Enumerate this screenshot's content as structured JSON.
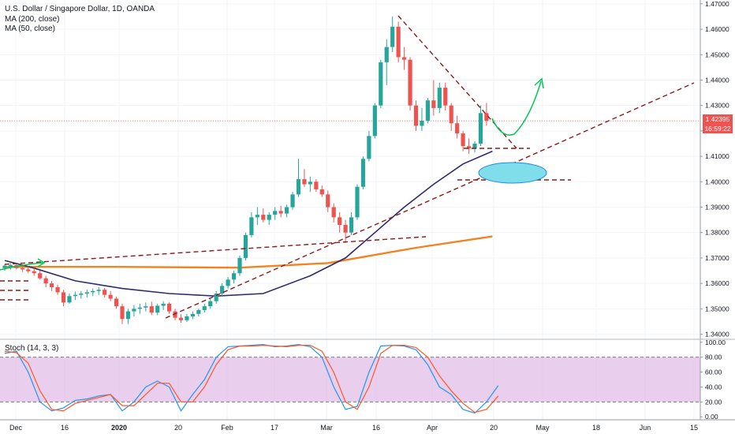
{
  "legend": {
    "title": "U.S. Dollar / Singapore Dollar, 1D, OANDA",
    "ma200": "MA (200, close)",
    "ma50": "MA (50, close)"
  },
  "stoch_label": "Stoch (14, 3, 3)",
  "price_badge": {
    "value": "1.42395",
    "countdown": "16:59:22"
  },
  "colors": {
    "up": "#26a69a",
    "down": "#ef5350",
    "ma200": "#f58220",
    "ma50": "#2e2a6e",
    "stochK": "#2196f3",
    "stochD": "#ff5722",
    "band": "#e1bee7",
    "ellipse": "#80deea",
    "arrow": "#00c853",
    "trend": "#8b1a1a"
  },
  "chart_data": [
    {
      "type": "candlestick",
      "title": "U.S. Dollar / Singapore Dollar, 1D, OANDA",
      "x_ticks": [
        "Dec",
        "16",
        "2020",
        "20",
        "Feb",
        "17",
        "Mar",
        "16",
        "Apr",
        "20",
        "May",
        "18",
        "Jun",
        "15"
      ],
      "y_ticks": [
        "1.47000",
        "1.46000",
        "1.45000",
        "1.44000",
        "1.43000",
        "1.42000",
        "1.41000",
        "1.40000",
        "1.39000",
        "1.38000",
        "1.37000",
        "1.36000",
        "1.35000",
        "1.34000"
      ],
      "ylim": [
        1.338,
        1.4715
      ],
      "last_price": 1.42395,
      "candles": [
        [
          1.366,
          1.3675,
          1.365,
          1.367
        ],
        [
          1.3665,
          1.368,
          1.3655,
          1.3672
        ],
        [
          1.3672,
          1.3678,
          1.3655,
          1.366
        ],
        [
          1.366,
          1.3672,
          1.3645,
          1.3655
        ],
        [
          1.3655,
          1.3668,
          1.364,
          1.3648
        ],
        [
          1.3648,
          1.366,
          1.363,
          1.364
        ],
        [
          1.364,
          1.365,
          1.3615,
          1.362
        ],
        [
          1.362,
          1.363,
          1.3585,
          1.36
        ],
        [
          1.36,
          1.361,
          1.357,
          1.3585
        ],
        [
          1.3585,
          1.3595,
          1.3555,
          1.3565
        ],
        [
          1.3565,
          1.3575,
          1.351,
          1.3525
        ],
        [
          1.3525,
          1.356,
          1.352,
          1.355
        ],
        [
          1.355,
          1.3568,
          1.3535,
          1.3555
        ],
        [
          1.3555,
          1.357,
          1.354,
          1.356
        ],
        [
          1.356,
          1.3575,
          1.3545,
          1.3565
        ],
        [
          1.3565,
          1.358,
          1.355,
          1.357
        ],
        [
          1.357,
          1.3585,
          1.3555,
          1.3575
        ],
        [
          1.3575,
          1.3582,
          1.3545,
          1.3555
        ],
        [
          1.3555,
          1.357,
          1.353,
          1.354
        ],
        [
          1.354,
          1.3548,
          1.35,
          1.351
        ],
        [
          1.351,
          1.352,
          1.344,
          1.346
        ],
        [
          1.346,
          1.35,
          1.344,
          1.349
        ],
        [
          1.349,
          1.3515,
          1.347,
          1.35
        ],
        [
          1.35,
          1.352,
          1.348,
          1.3505
        ],
        [
          1.3505,
          1.3525,
          1.349,
          1.351
        ],
        [
          1.351,
          1.3528,
          1.3475,
          1.3485
        ],
        [
          1.3485,
          1.352,
          1.3475,
          1.3512
        ],
        [
          1.3512,
          1.353,
          1.3495,
          1.352
        ],
        [
          1.352,
          1.3525,
          1.348,
          1.349
        ],
        [
          1.349,
          1.35,
          1.3455,
          1.3465
        ],
        [
          1.3465,
          1.3478,
          1.3445,
          1.3455
        ],
        [
          1.3455,
          1.348,
          1.3448,
          1.347
        ],
        [
          1.347,
          1.349,
          1.346,
          1.348
        ],
        [
          1.348,
          1.35,
          1.347,
          1.3495
        ],
        [
          1.3495,
          1.352,
          1.3485,
          1.351
        ],
        [
          1.351,
          1.354,
          1.35,
          1.353
        ],
        [
          1.353,
          1.357,
          1.352,
          1.356
        ],
        [
          1.356,
          1.36,
          1.355,
          1.359
        ],
        [
          1.359,
          1.3625,
          1.358,
          1.3615
        ],
        [
          1.3615,
          1.365,
          1.36,
          1.364
        ],
        [
          1.364,
          1.371,
          1.363,
          1.37
        ],
        [
          1.37,
          1.38,
          1.369,
          1.379
        ],
        [
          1.379,
          1.388,
          1.378,
          1.386
        ],
        [
          1.386,
          1.39,
          1.383,
          1.387
        ],
        [
          1.387,
          1.3895,
          1.384,
          1.385
        ],
        [
          1.385,
          1.388,
          1.383,
          1.387
        ],
        [
          1.387,
          1.39,
          1.385,
          1.3885
        ],
        [
          1.3885,
          1.3905,
          1.386,
          1.3875
        ],
        [
          1.3875,
          1.391,
          1.386,
          1.39
        ],
        [
          1.39,
          1.396,
          1.389,
          1.395
        ],
        [
          1.395,
          1.409,
          1.394,
          1.401
        ],
        [
          1.401,
          1.405,
          1.398,
          1.399
        ],
        [
          1.399,
          1.402,
          1.396,
          1.4
        ],
        [
          1.4,
          1.401,
          1.396,
          1.397
        ],
        [
          1.397,
          1.3985,
          1.394,
          1.395
        ],
        [
          1.395,
          1.3965,
          1.388,
          1.39
        ],
        [
          1.39,
          1.3915,
          1.384,
          1.386
        ],
        [
          1.386,
          1.388,
          1.38,
          1.383
        ],
        [
          1.383,
          1.385,
          1.376,
          1.38
        ],
        [
          1.38,
          1.388,
          1.379,
          1.386
        ],
        [
          1.386,
          1.399,
          1.385,
          1.398
        ],
        [
          1.398,
          1.41,
          1.397,
          1.409
        ],
        [
          1.409,
          1.42,
          1.408,
          1.418
        ],
        [
          1.418,
          1.431,
          1.417,
          1.43
        ],
        [
          1.43,
          1.448,
          1.429,
          1.447
        ],
        [
          1.447,
          1.456,
          1.438,
          1.453
        ],
        [
          1.453,
          1.465,
          1.451,
          1.461
        ],
        [
          1.461,
          1.463,
          1.447,
          1.449
        ],
        [
          1.449,
          1.453,
          1.444,
          1.448
        ],
        [
          1.448,
          1.449,
          1.428,
          1.43
        ],
        [
          1.43,
          1.432,
          1.42,
          1.422
        ],
        [
          1.422,
          1.429,
          1.42,
          1.424
        ],
        [
          1.424,
          1.433,
          1.423,
          1.432
        ],
        [
          1.432,
          1.44,
          1.426,
          1.429
        ],
        [
          1.429,
          1.439,
          1.427,
          1.437
        ],
        [
          1.437,
          1.439,
          1.428,
          1.43
        ],
        [
          1.43,
          1.431,
          1.42,
          1.423
        ],
        [
          1.423,
          1.426,
          1.417,
          1.419
        ],
        [
          1.419,
          1.42,
          1.412,
          1.414
        ],
        [
          1.414,
          1.417,
          1.411,
          1.413
        ],
        [
          1.413,
          1.416,
          1.4115,
          1.415
        ],
        [
          1.415,
          1.43,
          1.414,
          1.427
        ],
        [
          1.427,
          1.431,
          1.422,
          1.424
        ]
      ],
      "series": [
        {
          "name": "MA (200, close)",
          "values": [
            [
              0,
              1.3665
            ],
            [
              19,
              1.3665
            ],
            [
              40,
              1.3662
            ],
            [
              55,
              1.368
            ],
            [
              70,
              1.374
            ],
            [
              83,
              1.3785
            ]
          ]
        },
        {
          "name": "MA (50, close)",
          "values": [
            [
              0,
              1.369
            ],
            [
              5,
              1.366
            ],
            [
              12,
              1.361
            ],
            [
              20,
              1.358
            ],
            [
              28,
              1.356
            ],
            [
              36,
              1.355
            ],
            [
              44,
              1.356
            ],
            [
              52,
              1.363
            ],
            [
              58,
              1.37
            ],
            [
              63,
              1.38
            ],
            [
              68,
              1.39
            ],
            [
              73,
              1.399
            ],
            [
              78,
              1.407
            ],
            [
              83,
              1.412
            ]
          ]
        }
      ]
    },
    {
      "type": "line",
      "title": "Stoch (14, 3, 3)",
      "y_ticks": [
        "100.00",
        "80.00",
        "60.00",
        "40.00",
        "20.00",
        "0.00"
      ],
      "ylim": [
        -4,
        104
      ],
      "band": [
        20,
        80
      ],
      "series": [
        {
          "name": "%K",
          "values": [
            [
              0,
              85
            ],
            [
              2,
              88
            ],
            [
              4,
              60
            ],
            [
              6,
              20
            ],
            [
              8,
              8
            ],
            [
              10,
              12
            ],
            [
              12,
              22
            ],
            [
              14,
              24
            ],
            [
              16,
              28
            ],
            [
              18,
              30
            ],
            [
              20,
              8
            ],
            [
              22,
              20
            ],
            [
              24,
              40
            ],
            [
              26,
              48
            ],
            [
              28,
              40
            ],
            [
              30,
              8
            ],
            [
              32,
              30
            ],
            [
              34,
              50
            ],
            [
              36,
              80
            ],
            [
              38,
              94
            ],
            [
              40,
              95
            ],
            [
              42,
              96
            ],
            [
              44,
              97
            ],
            [
              46,
              94
            ],
            [
              48,
              95
            ],
            [
              50,
              97
            ],
            [
              52,
              94
            ],
            [
              54,
              80
            ],
            [
              56,
              40
            ],
            [
              58,
              10
            ],
            [
              60,
              14
            ],
            [
              62,
              60
            ],
            [
              64,
              95
            ],
            [
              66,
              96
            ],
            [
              68,
              95
            ],
            [
              70,
              90
            ],
            [
              72,
              70
            ],
            [
              74,
              40
            ],
            [
              76,
              30
            ],
            [
              78,
              10
            ],
            [
              80,
              5
            ],
            [
              82,
              20
            ],
            [
              84,
              42
            ]
          ]
        },
        {
          "name": "%D",
          "values": [
            [
              0,
              88
            ],
            [
              2,
              86
            ],
            [
              4,
              72
            ],
            [
              6,
              35
            ],
            [
              8,
              10
            ],
            [
              10,
              8
            ],
            [
              12,
              18
            ],
            [
              14,
              22
            ],
            [
              16,
              26
            ],
            [
              18,
              30
            ],
            [
              20,
              15
            ],
            [
              22,
              15
            ],
            [
              24,
              30
            ],
            [
              26,
              45
            ],
            [
              28,
              45
            ],
            [
              30,
              20
            ],
            [
              32,
              20
            ],
            [
              34,
              40
            ],
            [
              36,
              70
            ],
            [
              38,
              90
            ],
            [
              40,
              95
            ],
            [
              42,
              95
            ],
            [
              44,
              96
            ],
            [
              46,
              95
            ],
            [
              48,
              94
            ],
            [
              50,
              96
            ],
            [
              52,
              96
            ],
            [
              54,
              88
            ],
            [
              56,
              60
            ],
            [
              58,
              20
            ],
            [
              60,
              10
            ],
            [
              62,
              40
            ],
            [
              64,
              85
            ],
            [
              66,
              96
            ],
            [
              68,
              96
            ],
            [
              70,
              93
            ],
            [
              72,
              80
            ],
            [
              74,
              55
            ],
            [
              76,
              35
            ],
            [
              78,
              18
            ],
            [
              80,
              6
            ],
            [
              82,
              10
            ],
            [
              84,
              28
            ]
          ]
        }
      ]
    }
  ]
}
